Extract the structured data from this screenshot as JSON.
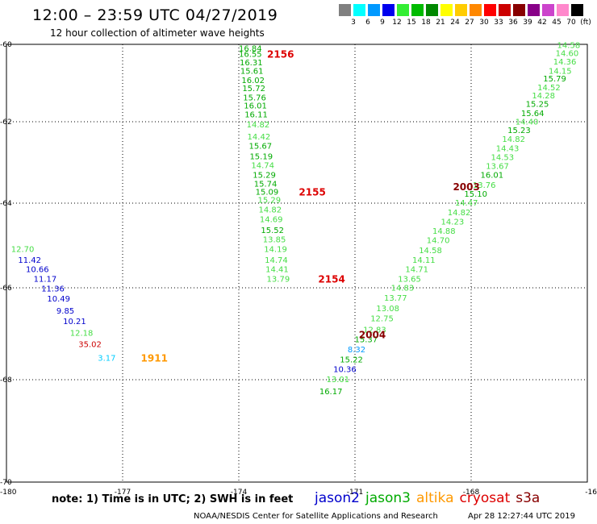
{
  "title": "12:00 – 23:59 UTC 04/27/2019",
  "subtitle": "12 hour collection of altimeter wave heights",
  "legend": {
    "unit": "(ft)",
    "bins": [
      {
        "label": "3",
        "color": "#808080"
      },
      {
        "label": "6",
        "color": "#00ffff"
      },
      {
        "label": "9",
        "color": "#0099ff"
      },
      {
        "label": "12",
        "color": "#0000ee"
      },
      {
        "label": "15",
        "color": "#33ee33"
      },
      {
        "label": "18",
        "color": "#00bb00"
      },
      {
        "label": "21",
        "color": "#008800"
      },
      {
        "label": "24",
        "color": "#ffff00"
      },
      {
        "label": "27",
        "color": "#ffcc00"
      },
      {
        "label": "30",
        "color": "#ff8800"
      },
      {
        "label": "33",
        "color": "#ff0000"
      },
      {
        "label": "36",
        "color": "#cc0000"
      },
      {
        "label": "39",
        "color": "#880000"
      },
      {
        "label": "42",
        "color": "#880088"
      },
      {
        "label": "45",
        "color": "#cc44cc"
      },
      {
        "label": "70",
        "color": "#ff88cc"
      },
      {
        "label": "",
        "color": "#000000"
      }
    ]
  },
  "axes": {
    "lon_ticks": [
      "-180",
      "-177",
      "-174",
      "-171",
      "-168",
      "-16"
    ],
    "lat_ticks": [
      "-60",
      "-62",
      "-64",
      "-66",
      "-68",
      "-70"
    ]
  },
  "note": "note: 1) Time is in UTC; 2) SWH is in feet",
  "satellites": [
    {
      "name": "jason2",
      "color": "#0000cc"
    },
    {
      "name": "jason3",
      "color": "#00aa00"
    },
    {
      "name": "altika",
      "color": "#ff9900"
    },
    {
      "name": "cryosat",
      "color": "#dd0000"
    },
    {
      "name": "s3a",
      "color": "#880000"
    }
  ],
  "footer": "NOAA/NESDIS Center for Satellite Applications and Research",
  "timestamp": "Apr 28 12:27:44 UTC 2019",
  "map_data": {
    "track_times": [
      {
        "label": "2156",
        "color": "#dd0000",
        "lon": -173.27,
        "lat": -60.24
      },
      {
        "label": "2155",
        "color": "#dd0000",
        "lon": -172.45,
        "lat": -63.71
      },
      {
        "label": "2154",
        "color": "#dd0000",
        "lon": -171.95,
        "lat": -65.78
      },
      {
        "label": "2003",
        "color": "#880000",
        "lon": -168.47,
        "lat": -63.58
      },
      {
        "label": "2004",
        "color": "#880000",
        "lon": -170.9,
        "lat": -67.01
      },
      {
        "label": "1911",
        "color": "#ff9900",
        "lon": -176.53,
        "lat": -67.52
      }
    ],
    "observations": [
      {
        "v": "16.84",
        "lon": -174.0,
        "lat": -60.09,
        "color": "#00aa00"
      },
      {
        "v": "16.55",
        "lon": -174.0,
        "lat": -60.24,
        "color": "#00aa00"
      },
      {
        "v": "16.31",
        "lon": -173.98,
        "lat": -60.46,
        "color": "#00aa00"
      },
      {
        "v": "15.61",
        "lon": -173.96,
        "lat": -60.68,
        "color": "#00aa00"
      },
      {
        "v": "16.02",
        "lon": -173.93,
        "lat": -60.92,
        "color": "#00aa00"
      },
      {
        "v": "15.72",
        "lon": -173.91,
        "lat": -61.13,
        "color": "#00aa00"
      },
      {
        "v": "15.76",
        "lon": -173.89,
        "lat": -61.36,
        "color": "#00aa00"
      },
      {
        "v": "16.01",
        "lon": -173.87,
        "lat": -61.57,
        "color": "#00aa00"
      },
      {
        "v": "16.11",
        "lon": -173.85,
        "lat": -61.8,
        "color": "#00aa00"
      },
      {
        "v": "14.82",
        "lon": -173.8,
        "lat": -62.06,
        "color": "#44dd44"
      },
      {
        "v": "14.42",
        "lon": -173.78,
        "lat": -62.36,
        "color": "#44dd44"
      },
      {
        "v": "15.67",
        "lon": -173.74,
        "lat": -62.58,
        "color": "#00aa00"
      },
      {
        "v": "15.19",
        "lon": -173.72,
        "lat": -62.84,
        "color": "#00aa00"
      },
      {
        "v": "14.74",
        "lon": -173.68,
        "lat": -63.06,
        "color": "#44dd44"
      },
      {
        "v": "15.29",
        "lon": -173.64,
        "lat": -63.3,
        "color": "#00aa00"
      },
      {
        "v": "15.74",
        "lon": -173.61,
        "lat": -63.51,
        "color": "#00aa00"
      },
      {
        "v": "15.09",
        "lon": -173.57,
        "lat": -63.71,
        "color": "#00aa00"
      },
      {
        "v": "15.29",
        "lon": -173.51,
        "lat": -63.91,
        "color": "#44dd44"
      },
      {
        "v": "14.82",
        "lon": -173.49,
        "lat": -64.14,
        "color": "#44dd44"
      },
      {
        "v": "14.69",
        "lon": -173.46,
        "lat": -64.37,
        "color": "#44dd44"
      },
      {
        "v": "15.52",
        "lon": -173.43,
        "lat": -64.63,
        "color": "#00aa00"
      },
      {
        "v": "13.85",
        "lon": -173.38,
        "lat": -64.85,
        "color": "#44dd44"
      },
      {
        "v": "14.19",
        "lon": -173.35,
        "lat": -65.08,
        "color": "#44dd44"
      },
      {
        "v": "14.74",
        "lon": -173.33,
        "lat": -65.33,
        "color": "#44dd44"
      },
      {
        "v": "14.41",
        "lon": -173.31,
        "lat": -65.55,
        "color": "#44dd44"
      },
      {
        "v": "13.79",
        "lon": -173.28,
        "lat": -65.78,
        "color": "#44dd44"
      },
      {
        "v": "14.58",
        "lon": -165.78,
        "lat": -60.01,
        "color": "#44dd44"
      },
      {
        "v": "14.60",
        "lon": -165.82,
        "lat": -60.22,
        "color": "#44dd44"
      },
      {
        "v": "14.36",
        "lon": -165.88,
        "lat": -60.44,
        "color": "#44dd44"
      },
      {
        "v": "14.15",
        "lon": -166.0,
        "lat": -60.68,
        "color": "#44dd44"
      },
      {
        "v": "15.79",
        "lon": -166.14,
        "lat": -60.88,
        "color": "#00aa00"
      },
      {
        "v": "14.52",
        "lon": -166.29,
        "lat": -61.1,
        "color": "#44dd44"
      },
      {
        "v": "14.28",
        "lon": -166.43,
        "lat": -61.31,
        "color": "#44dd44"
      },
      {
        "v": "15.25",
        "lon": -166.59,
        "lat": -61.53,
        "color": "#00aa00"
      },
      {
        "v": "15.64",
        "lon": -166.71,
        "lat": -61.77,
        "color": "#00aa00"
      },
      {
        "v": "14.40",
        "lon": -166.86,
        "lat": -61.99,
        "color": "#44dd44"
      },
      {
        "v": "15.23",
        "lon": -167.06,
        "lat": -62.2,
        "color": "#00aa00"
      },
      {
        "v": "14.82",
        "lon": -167.2,
        "lat": -62.42,
        "color": "#44dd44"
      },
      {
        "v": "14.43",
        "lon": -167.36,
        "lat": -62.64,
        "color": "#44dd44"
      },
      {
        "v": "14.53",
        "lon": -167.49,
        "lat": -62.86,
        "color": "#44dd44"
      },
      {
        "v": "13.67",
        "lon": -167.62,
        "lat": -63.08,
        "color": "#44dd44"
      },
      {
        "v": "16.01",
        "lon": -167.76,
        "lat": -63.3,
        "color": "#00aa00"
      },
      {
        "v": "13.76",
        "lon": -167.96,
        "lat": -63.54,
        "color": "#44dd44"
      },
      {
        "v": "15.10",
        "lon": -168.18,
        "lat": -63.76,
        "color": "#00aa00"
      },
      {
        "v": "14.47",
        "lon": -168.42,
        "lat": -63.98,
        "color": "#44dd44"
      },
      {
        "v": "14.82",
        "lon": -168.61,
        "lat": -64.21,
        "color": "#44dd44"
      },
      {
        "v": "14.23",
        "lon": -168.78,
        "lat": -64.43,
        "color": "#44dd44"
      },
      {
        "v": "14.88",
        "lon": -169.0,
        "lat": -64.65,
        "color": "#44dd44"
      },
      {
        "v": "14.70",
        "lon": -169.15,
        "lat": -64.87,
        "color": "#44dd44"
      },
      {
        "v": "14.58",
        "lon": -169.35,
        "lat": -65.1,
        "color": "#44dd44"
      },
      {
        "v": "14.11",
        "lon": -169.52,
        "lat": -65.33,
        "color": "#44dd44"
      },
      {
        "v": "14.71",
        "lon": -169.7,
        "lat": -65.55,
        "color": "#44dd44"
      },
      {
        "v": "13.65",
        "lon": -169.89,
        "lat": -65.78,
        "color": "#44dd44"
      },
      {
        "v": "14.83",
        "lon": -170.07,
        "lat": -65.99,
        "color": "#44dd44"
      },
      {
        "v": "13.77",
        "lon": -170.25,
        "lat": -66.21,
        "color": "#44dd44"
      },
      {
        "v": "13.08",
        "lon": -170.45,
        "lat": -66.44,
        "color": "#44dd44"
      },
      {
        "v": "12.75",
        "lon": -170.6,
        "lat": -66.66,
        "color": "#44dd44"
      },
      {
        "v": "12.83",
        "lon": -170.79,
        "lat": -66.9,
        "color": "#44dd44"
      },
      {
        "v": "15.37",
        "lon": -171.01,
        "lat": -67.11,
        "color": "#00aa00"
      },
      {
        "v": "8.32",
        "lon": -171.19,
        "lat": -67.33,
        "color": "#0099ff"
      },
      {
        "v": "15.22",
        "lon": -171.39,
        "lat": -67.55,
        "color": "#00aa00"
      },
      {
        "v": "10.36",
        "lon": -171.56,
        "lat": -67.76,
        "color": "#0000cc"
      },
      {
        "v": "13.01",
        "lon": -171.74,
        "lat": -67.98,
        "color": "#44dd44"
      },
      {
        "v": "16.17",
        "lon": -171.92,
        "lat": -68.22,
        "color": "#00aa00"
      },
      {
        "v": "12.70",
        "lon": -179.88,
        "lat": -65.08,
        "color": "#44dd44"
      },
      {
        "v": "11.42",
        "lon": -179.7,
        "lat": -65.33,
        "color": "#0000cc"
      },
      {
        "v": "10.66",
        "lon": -179.5,
        "lat": -65.55,
        "color": "#0000cc"
      },
      {
        "v": "11.17",
        "lon": -179.3,
        "lat": -65.78,
        "color": "#0000cc"
      },
      {
        "v": "11.36",
        "lon": -179.1,
        "lat": -66.01,
        "color": "#0000cc"
      },
      {
        "v": "10.49",
        "lon": -178.95,
        "lat": -66.23,
        "color": "#0000cc"
      },
      {
        "v": "9.85",
        "lon": -178.71,
        "lat": -66.49,
        "color": "#0000cc"
      },
      {
        "v": "10.21",
        "lon": -178.54,
        "lat": -66.72,
        "color": "#0000cc"
      },
      {
        "v": "12.18",
        "lon": -178.36,
        "lat": -66.97,
        "color": "#44dd44"
      },
      {
        "v": "35.02",
        "lon": -178.14,
        "lat": -67.22,
        "color": "#cc0000"
      },
      {
        "v": "3.17",
        "lon": -177.64,
        "lat": -67.52,
        "color": "#00ccff"
      }
    ]
  }
}
